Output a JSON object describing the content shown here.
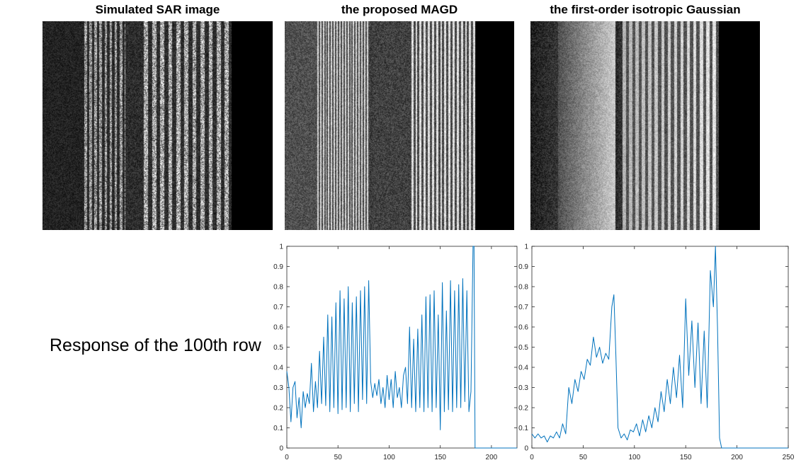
{
  "panels": [
    {
      "title": "Simulated SAR image"
    },
    {
      "title": "the proposed MAGD"
    },
    {
      "title": "the first-order isotropic Gaussian"
    }
  ],
  "row_label": "Response of the 100th row",
  "colors": {
    "line": "#0072BD",
    "axis": "#262626",
    "image_bg": "#000000"
  },
  "chart_data": [
    {
      "type": "line",
      "title": "",
      "xlabel": "",
      "ylabel": "",
      "xlim": [
        0,
        225
      ],
      "ylim": [
        0,
        1
      ],
      "xticks": [
        0,
        50,
        100,
        150,
        200
      ],
      "yticks": [
        0,
        0.1,
        0.2,
        0.3,
        0.4,
        0.5,
        0.6,
        0.7,
        0.8,
        0.9,
        1
      ],
      "grid": false,
      "series": [
        {
          "x": [
            0,
            2,
            4,
            6,
            8,
            10,
            12,
            14,
            16,
            18,
            20,
            22,
            24,
            26,
            28,
            30,
            32,
            34,
            36,
            38,
            40,
            42,
            44,
            46,
            48,
            50,
            52,
            54,
            56,
            58,
            60,
            62,
            64,
            66,
            68,
            70,
            72,
            74,
            76,
            78,
            80,
            82,
            84,
            86,
            88,
            90,
            92,
            94,
            96,
            98,
            100,
            102,
            104,
            106,
            108,
            110,
            112,
            114,
            116,
            118,
            120,
            122,
            124,
            126,
            128,
            130,
            132,
            134,
            136,
            138,
            140,
            142,
            144,
            146,
            148,
            150,
            152,
            154,
            156,
            158,
            160,
            162,
            164,
            166,
            168,
            170,
            172,
            174,
            176,
            178,
            180,
            182,
            183,
            184,
            186,
            200,
            225
          ],
          "y": [
            0.38,
            0.3,
            0.13,
            0.3,
            0.33,
            0.15,
            0.25,
            0.1,
            0.28,
            0.2,
            0.27,
            0.22,
            0.42,
            0.18,
            0.33,
            0.2,
            0.48,
            0.22,
            0.55,
            0.21,
            0.66,
            0.18,
            0.65,
            0.2,
            0.72,
            0.17,
            0.78,
            0.19,
            0.74,
            0.2,
            0.8,
            0.18,
            0.72,
            0.22,
            0.75,
            0.18,
            0.78,
            0.24,
            0.8,
            0.22,
            0.83,
            0.33,
            0.25,
            0.32,
            0.26,
            0.34,
            0.22,
            0.3,
            0.2,
            0.36,
            0.24,
            0.34,
            0.2,
            0.38,
            0.25,
            0.3,
            0.2,
            0.36,
            0.4,
            0.22,
            0.6,
            0.2,
            0.54,
            0.18,
            0.59,
            0.2,
            0.66,
            0.18,
            0.75,
            0.2,
            0.76,
            0.18,
            0.78,
            0.2,
            0.66,
            0.09,
            0.82,
            0.18,
            0.68,
            0.19,
            0.83,
            0.18,
            0.78,
            0.2,
            0.81,
            0.2,
            0.84,
            0.23,
            0.78,
            0.18,
            0.28,
            1.0,
            1.0,
            0.0,
            0.0,
            0.0,
            0.0
          ]
        }
      ]
    },
    {
      "type": "line",
      "title": "",
      "xlabel": "",
      "ylabel": "",
      "xlim": [
        0,
        250
      ],
      "ylim": [
        0,
        1
      ],
      "xticks": [
        0,
        50,
        100,
        150,
        200,
        250
      ],
      "yticks": [
        0,
        0.1,
        0.2,
        0.3,
        0.4,
        0.5,
        0.6,
        0.7,
        0.8,
        0.9,
        1
      ],
      "grid": false,
      "series": [
        {
          "x": [
            0,
            3,
            6,
            9,
            12,
            15,
            18,
            21,
            24,
            27,
            30,
            33,
            36,
            39,
            42,
            45,
            48,
            51,
            54,
            57,
            60,
            63,
            66,
            69,
            72,
            75,
            78,
            80,
            82,
            84,
            87,
            90,
            93,
            96,
            99,
            102,
            105,
            108,
            111,
            114,
            117,
            120,
            123,
            126,
            129,
            132,
            135,
            138,
            141,
            144,
            147,
            150,
            153,
            156,
            159,
            162,
            165,
            168,
            171,
            174,
            177,
            179,
            181,
            183,
            185,
            190,
            200,
            250
          ],
          "y": [
            0.07,
            0.05,
            0.07,
            0.05,
            0.06,
            0.03,
            0.06,
            0.05,
            0.08,
            0.05,
            0.12,
            0.07,
            0.3,
            0.22,
            0.34,
            0.28,
            0.38,
            0.34,
            0.44,
            0.41,
            0.55,
            0.45,
            0.5,
            0.42,
            0.47,
            0.44,
            0.7,
            0.76,
            0.45,
            0.1,
            0.05,
            0.07,
            0.04,
            0.09,
            0.08,
            0.12,
            0.06,
            0.14,
            0.08,
            0.16,
            0.1,
            0.2,
            0.13,
            0.28,
            0.18,
            0.34,
            0.22,
            0.4,
            0.25,
            0.46,
            0.2,
            0.74,
            0.36,
            0.63,
            0.3,
            0.62,
            0.22,
            0.58,
            0.2,
            0.88,
            0.7,
            1.0,
            0.6,
            0.05,
            0.0,
            0.0,
            0.0,
            0.0
          ]
        }
      ]
    }
  ]
}
